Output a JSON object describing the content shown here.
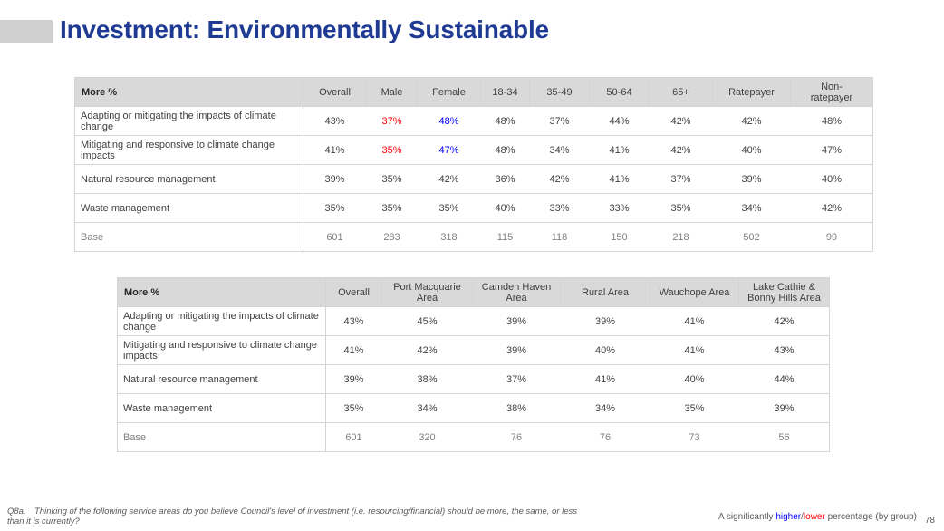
{
  "title": "Investment: Environmentally Sustainable",
  "table1": {
    "corner": "More %",
    "columns": [
      "Overall",
      "Male",
      "Female",
      "18-34",
      "35-49",
      "50-64",
      "65+",
      "Ratepayer",
      "Non-ratepayer"
    ],
    "rows": [
      {
        "label": "Adapting or mitigating the impacts of climate change",
        "values": [
          "43%",
          "37%",
          "48%",
          "48%",
          "37%",
          "44%",
          "42%",
          "42%",
          "48%"
        ]
      },
      {
        "label": "Mitigating and responsive to climate change impacts",
        "values": [
          "41%",
          "35%",
          "47%",
          "48%",
          "34%",
          "41%",
          "42%",
          "40%",
          "47%"
        ]
      },
      {
        "label": "Natural resource management",
        "values": [
          "39%",
          "35%",
          "42%",
          "36%",
          "42%",
          "41%",
          "37%",
          "39%",
          "40%"
        ]
      },
      {
        "label": "Waste management",
        "values": [
          "35%",
          "35%",
          "35%",
          "40%",
          "33%",
          "33%",
          "35%",
          "34%",
          "42%"
        ]
      }
    ],
    "base": {
      "label": "Base",
      "values": [
        "601",
        "283",
        "318",
        "115",
        "118",
        "150",
        "218",
        "502",
        "99"
      ]
    }
  },
  "table2": {
    "corner": "More %",
    "columns": [
      "Overall",
      "Port Macquarie Area",
      "Camden Haven Area",
      "Rural Area",
      "Wauchope Area",
      "Lake Cathie & Bonny Hills Area"
    ],
    "rows": [
      {
        "label": "Adapting or mitigating the impacts of climate change",
        "values": [
          "43%",
          "45%",
          "39%",
          "39%",
          "41%",
          "42%"
        ]
      },
      {
        "label": "Mitigating and responsive to climate change impacts",
        "values": [
          "41%",
          "42%",
          "39%",
          "40%",
          "41%",
          "43%"
        ]
      },
      {
        "label": "Natural resource management",
        "values": [
          "39%",
          "38%",
          "37%",
          "41%",
          "40%",
          "44%"
        ]
      },
      {
        "label": "Waste management",
        "values": [
          "35%",
          "34%",
          "38%",
          "34%",
          "35%",
          "39%"
        ]
      }
    ],
    "base": {
      "label": "Base",
      "values": [
        "601",
        "320",
        "76",
        "76",
        "73",
        "56"
      ]
    }
  },
  "footnote": {
    "question_id": "Q8a.",
    "text": "Thinking of the following service areas do you believe Council's level of investment (i.e. resourcing/financial) should be more, the same, or less than it is currently?"
  },
  "legend": {
    "prefix": "A significantly ",
    "higher": "higher",
    "slash": "/",
    "lower": "lower",
    "suffix": " percentage (by group)"
  },
  "page_number": "78",
  "colors": {
    "title": "#1f3a93",
    "header_fill": "#d9d9d9",
    "significantly_higher": "#0000ff",
    "significantly_lower": "#ff0000"
  },
  "significance": {
    "table1": [
      {
        "row": 0,
        "col": 1,
        "flag": "lower"
      },
      {
        "row": 0,
        "col": 2,
        "flag": "higher"
      },
      {
        "row": 1,
        "col": 1,
        "flag": "lower"
      },
      {
        "row": 1,
        "col": 2,
        "flag": "higher"
      }
    ]
  }
}
